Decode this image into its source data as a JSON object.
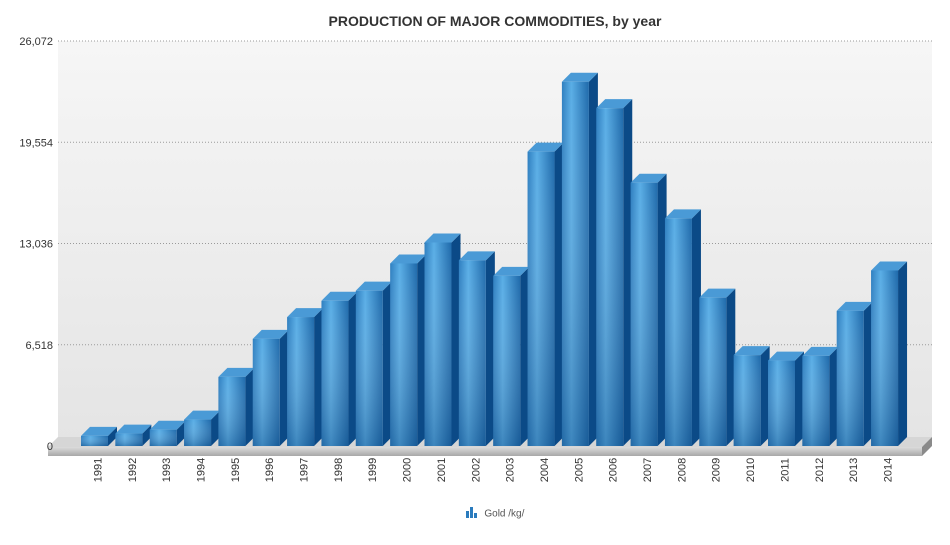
{
  "chart_data": {
    "type": "bar",
    "title": "PRODUCTION OF MAJOR COMMODITIES, by year",
    "xlabel": "",
    "ylabel": "",
    "categories": [
      "1991",
      "1992",
      "1993",
      "1994",
      "1995",
      "1996",
      "1997",
      "1998",
      "1999",
      "2000",
      "2001",
      "2002",
      "2003",
      "2004",
      "2005",
      "2006",
      "2007",
      "2008",
      "2009",
      "2010",
      "2011",
      "2012",
      "2013",
      "2014"
    ],
    "series": [
      {
        "name": "Gold /kg/",
        "values": [
          650,
          800,
          1050,
          1700,
          4450,
          6900,
          8300,
          9350,
          10000,
          11750,
          13100,
          11950,
          10950,
          18950,
          23450,
          21750,
          16950,
          14650,
          9550,
          5850,
          5500,
          5800,
          8700,
          11300
        ]
      }
    ],
    "ylim": [
      0,
      26072
    ],
    "yticks": [
      "0",
      "6,518",
      "13,036",
      "19,554",
      "26,072"
    ],
    "grid": true,
    "legend_position": "bottom-center",
    "colors": {
      "bar_top": "#5aaee6",
      "bar_front": "#2a7bbd",
      "bar_side": "#0b4a87",
      "bar_cap": "#4a9ad6",
      "plot_bg": "#f0f0f0",
      "floor": "#c8c8c8"
    }
  }
}
